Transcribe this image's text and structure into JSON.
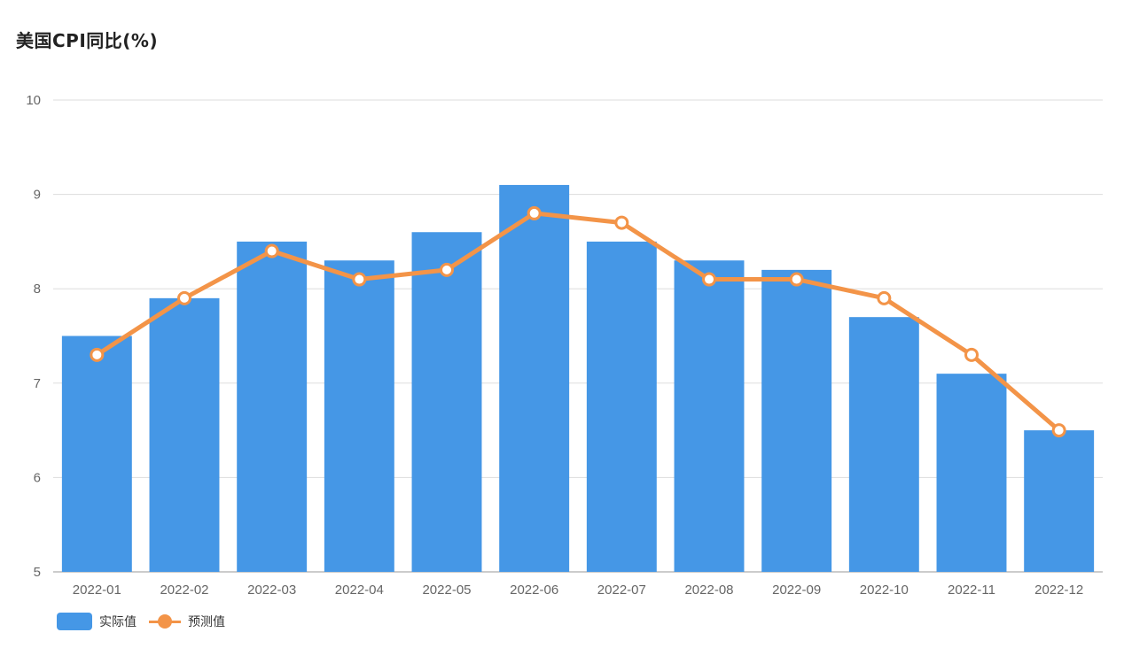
{
  "title": "美国CPI同比(%)",
  "colors": {
    "bar": "#4597e6",
    "line": "#f39448",
    "grid": "#dddddd",
    "axis": "#bbbbbb"
  },
  "legend": {
    "bar_label": "实际值",
    "line_label": "预测值"
  },
  "chart_data": {
    "type": "bar",
    "title": "美国CPI同比(%)",
    "categories": [
      "2022-01",
      "2022-02",
      "2022-03",
      "2022-04",
      "2022-05",
      "2022-06",
      "2022-07",
      "2022-08",
      "2022-09",
      "2022-10",
      "2022-11",
      "2022-12"
    ],
    "series": [
      {
        "name": "实际值",
        "type": "bar",
        "values": [
          7.5,
          7.9,
          8.5,
          8.3,
          8.6,
          9.1,
          8.5,
          8.3,
          8.2,
          7.7,
          7.1,
          6.5
        ]
      },
      {
        "name": "预测值",
        "type": "line",
        "values": [
          7.3,
          7.9,
          8.4,
          8.1,
          8.2,
          8.8,
          8.7,
          8.1,
          8.1,
          7.9,
          7.3,
          6.5
        ]
      }
    ],
    "yticks": [
      5,
      6,
      7,
      8,
      9,
      10
    ],
    "ylim": [
      5,
      10
    ],
    "grid": true,
    "legend_position": "bottom-left"
  }
}
